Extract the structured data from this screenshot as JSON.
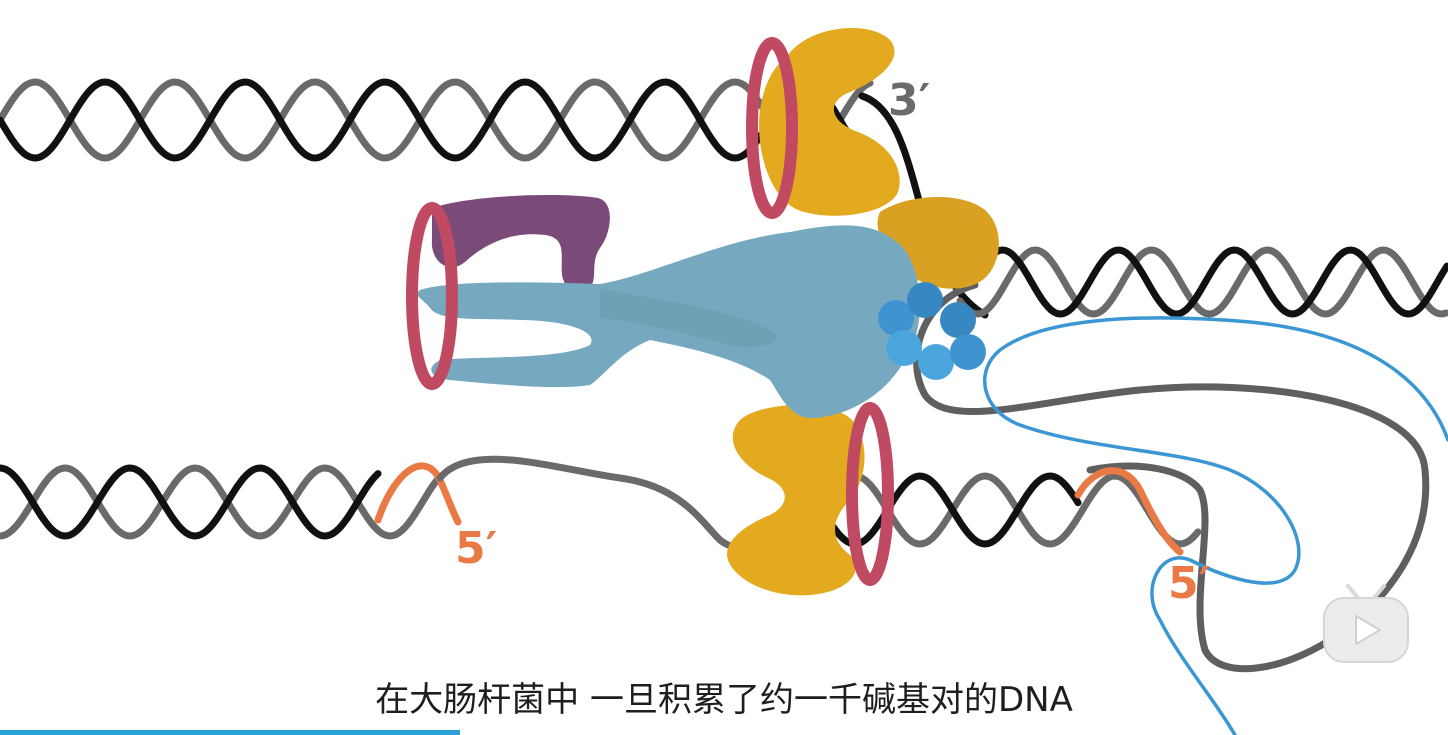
{
  "labels": {
    "top_three_prime": "3′",
    "left_five_prime": "5′",
    "right_five_prime": "5′"
  },
  "subtitle": "在大肠杆菌中 一旦积累了约一千碱基对的DNA",
  "player": {
    "progress_fraction": 0.318,
    "watermark_icon": "play-icon"
  },
  "colors": {
    "strand_black": "#111111",
    "strand_gray": "#6a6a6a",
    "primer_orange": "#ea7a45",
    "helicase_gold": "#e4aa1f",
    "clamp_red": "#c04a62",
    "polymerase_blue": "#76a9bf",
    "tau_purple": "#7a4a78",
    "ssb_blue": "#3f94cf",
    "new_strand_blue": "#3b97d4",
    "progress_blue": "#2aa0d8"
  }
}
